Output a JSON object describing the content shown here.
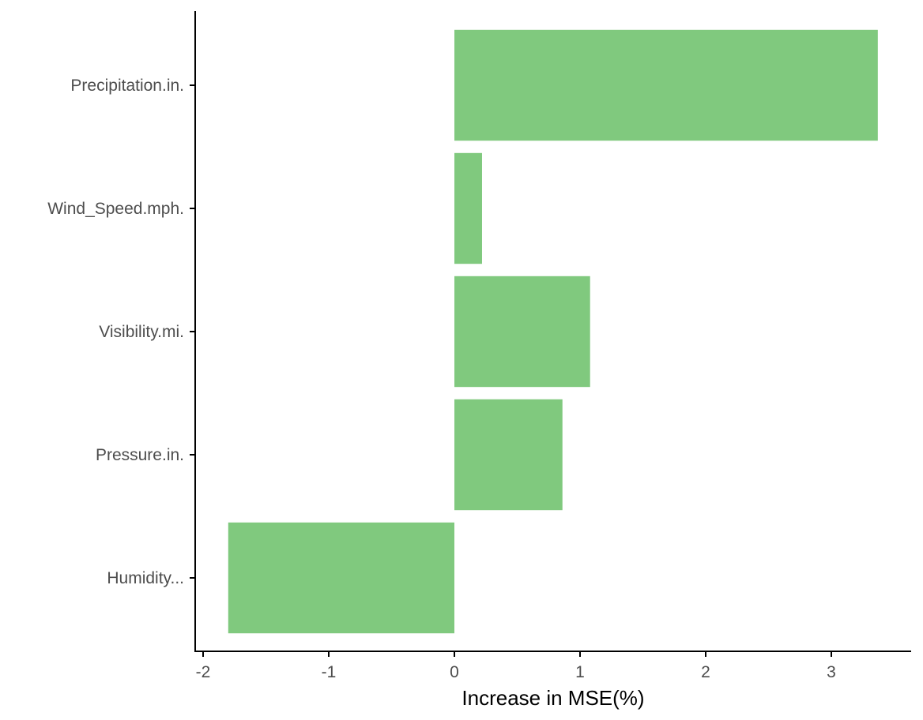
{
  "chart_data": {
    "type": "bar",
    "orientation": "horizontal",
    "categories": [
      "Precipitation.in.",
      "Wind_Speed.mph.",
      "Visibility.mi.",
      "Pressure.in.",
      "Humidity..."
    ],
    "values": [
      3.37,
      0.22,
      1.08,
      0.86,
      -1.8
    ],
    "xlabel": "Increase in MSE(%)",
    "ylabel": "",
    "title": "",
    "xlim": [
      -2.05,
      3.6
    ],
    "x_ticks": [
      -2,
      -1,
      0,
      1,
      2,
      3
    ],
    "x_tick_labels": [
      "-2",
      "-1",
      "0",
      "1",
      "2",
      "3"
    ],
    "bar_color": "#80c97e",
    "grid": false,
    "legend": "none"
  }
}
